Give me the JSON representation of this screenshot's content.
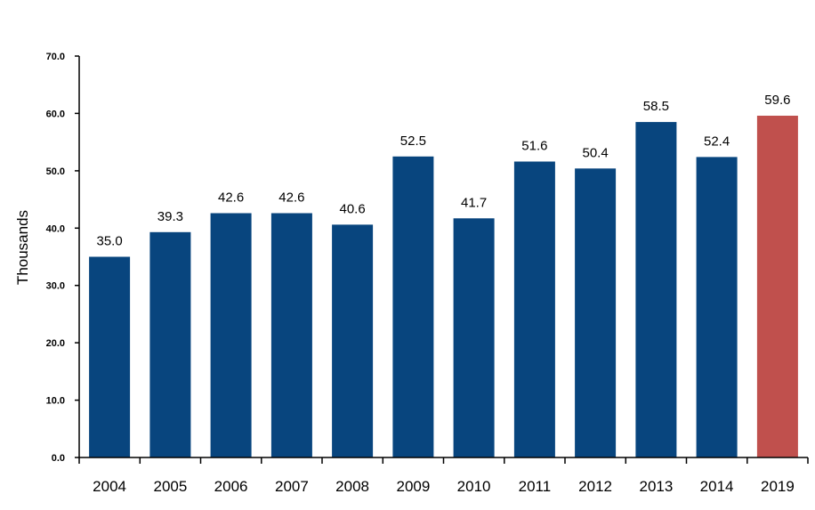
{
  "chart_data": {
    "type": "bar",
    "title": "",
    "xlabel": "",
    "ylabel": "Thousands",
    "categories": [
      "2004",
      "2005",
      "2006",
      "2007",
      "2008",
      "2009",
      "2010",
      "2011",
      "2012",
      "2013",
      "2014",
      "2019"
    ],
    "values": [
      35.0,
      39.3,
      42.6,
      42.6,
      40.6,
      52.5,
      41.7,
      51.6,
      50.4,
      58.5,
      52.4,
      59.6
    ],
    "data_labels": [
      "35.0",
      "39.3",
      "42.6",
      "42.6",
      "40.6",
      "52.5",
      "41.7",
      "51.6",
      "50.4",
      "58.5",
      "52.4",
      "59.6"
    ],
    "bar_colors": [
      "#08457e",
      "#08457e",
      "#08457e",
      "#08457e",
      "#08457e",
      "#08457e",
      "#08457e",
      "#08457e",
      "#08457e",
      "#08457e",
      "#08457e",
      "#c0504d"
    ],
    "ylim": [
      0,
      70
    ],
    "yticks": [
      "0.0",
      "10.0",
      "20.0",
      "30.0",
      "40.0",
      "50.0",
      "60.0",
      "70.0"
    ],
    "grid": false,
    "legend": "none"
  }
}
